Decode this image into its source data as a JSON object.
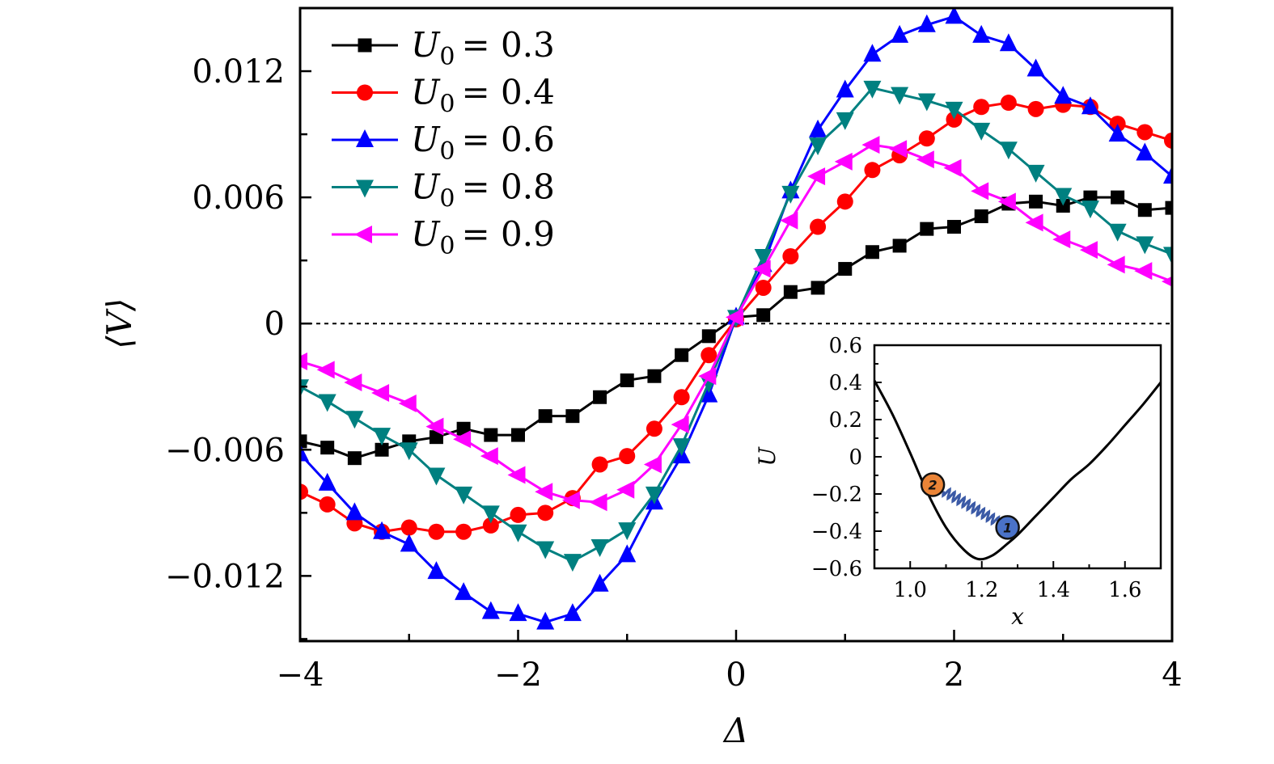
{
  "chart_data": {
    "type": "line",
    "title": "",
    "xlabel": "Δ",
    "ylabel": "⟨V⟩",
    "xlim": [
      -4,
      4
    ],
    "ylim": [
      -0.0151,
      0.015
    ],
    "xticks": [
      -4,
      -2,
      0,
      2,
      4
    ],
    "xtick_labels": [
      "−4",
      "−2",
      "0",
      "2",
      "4"
    ],
    "yticks": [
      -0.012,
      -0.006,
      0,
      0.006,
      0.012
    ],
    "ytick_labels": [
      "−0.012",
      "−0.006",
      "0",
      "0.006",
      "0.012"
    ],
    "grid": false,
    "reference_line": {
      "y": 0,
      "style": "dotted"
    },
    "legend_position": "top-left",
    "x": [
      -4,
      -3.75,
      -3.5,
      -3.25,
      -3,
      -2.75,
      -2.5,
      -2.25,
      -2,
      -1.75,
      -1.5,
      -1.25,
      -1,
      -0.75,
      -0.5,
      -0.25,
      0,
      0.25,
      0.5,
      0.75,
      1,
      1.25,
      1.5,
      1.75,
      2,
      2.25,
      2.5,
      2.75,
      3,
      3.25,
      3.5,
      3.75,
      4
    ],
    "series": [
      {
        "name": "U_0 = 0.3",
        "legend_label": "= 0.3",
        "color": "#000000",
        "marker": "square",
        "values": [
          -0.0056,
          -0.0059,
          -0.0064,
          -0.006,
          -0.0056,
          -0.0054,
          -0.005,
          -0.0053,
          -0.0053,
          -0.0044,
          -0.0044,
          -0.0035,
          -0.0027,
          -0.0025,
          -0.0015,
          -0.0006,
          0.0003,
          0.0004,
          0.0015,
          0.0017,
          0.0026,
          0.0034,
          0.0037,
          0.0045,
          0.0046,
          0.0051,
          0.0057,
          0.0058,
          0.0056,
          0.006,
          0.006,
          0.0054,
          0.0055
        ]
      },
      {
        "name": "U_0 = 0.4",
        "legend_label": "= 0.4",
        "color": "#ff0000",
        "marker": "circle",
        "values": [
          -0.008,
          -0.0086,
          -0.0095,
          -0.0099,
          -0.0097,
          -0.0099,
          -0.0099,
          -0.0096,
          -0.0091,
          -0.009,
          -0.0083,
          -0.0067,
          -0.0063,
          -0.005,
          -0.0035,
          -0.0015,
          0.0002,
          0.0017,
          0.0032,
          0.0046,
          0.0058,
          0.0073,
          0.008,
          0.0088,
          0.0097,
          0.0103,
          0.0105,
          0.0102,
          0.0104,
          0.0103,
          0.0095,
          0.0091,
          0.0087
        ]
      },
      {
        "name": "U_0 = 0.6",
        "legend_label": "= 0.6",
        "color": "#0000ff",
        "marker": "triangle-up",
        "values": [
          -0.0062,
          -0.0076,
          -0.009,
          -0.0099,
          -0.0105,
          -0.0118,
          -0.0128,
          -0.0137,
          -0.0138,
          -0.0142,
          -0.0138,
          -0.0124,
          -0.011,
          -0.0085,
          -0.0063,
          -0.0034,
          0.0003,
          0.0028,
          0.0063,
          0.0092,
          0.0111,
          0.0128,
          0.0137,
          0.0142,
          0.0146,
          0.0137,
          0.0133,
          0.0121,
          0.0108,
          0.0103,
          0.009,
          0.0081,
          0.007
        ]
      },
      {
        "name": "U_0 = 0.8",
        "legend_label": "= 0.8",
        "color": "#008080",
        "marker": "triangle-down",
        "values": [
          -0.003,
          -0.0037,
          -0.0045,
          -0.0053,
          -0.006,
          -0.0072,
          -0.0081,
          -0.009,
          -0.0099,
          -0.0107,
          -0.0113,
          -0.0106,
          -0.0098,
          -0.0081,
          -0.0058,
          -0.0028,
          0.0003,
          0.0032,
          0.0062,
          0.0085,
          0.0097,
          0.0112,
          0.0109,
          0.0106,
          0.0102,
          0.0092,
          0.0083,
          0.0072,
          0.0061,
          0.0055,
          0.0044,
          0.0038,
          0.0033
        ]
      },
      {
        "name": "U_0 = 0.9",
        "legend_label": "= 0.9",
        "color": "#ff00ff",
        "marker": "triangle-left",
        "values": [
          -0.0018,
          -0.0022,
          -0.0028,
          -0.0033,
          -0.0038,
          -0.0049,
          -0.0055,
          -0.0063,
          -0.0072,
          -0.008,
          -0.0084,
          -0.0085,
          -0.0079,
          -0.0067,
          -0.0048,
          -0.0025,
          0.0003,
          0.0026,
          0.0049,
          0.007,
          0.0077,
          0.0085,
          0.0083,
          0.0078,
          0.0074,
          0.0063,
          0.0058,
          0.0048,
          0.004,
          0.0035,
          0.0028,
          0.0025,
          0.002
        ]
      }
    ],
    "inset": {
      "type": "line",
      "xlabel": "x",
      "ylabel": "U",
      "xlim": [
        0.9,
        1.7
      ],
      "ylim": [
        -0.6,
        0.6
      ],
      "xticks": [
        1.0,
        1.2,
        1.4,
        1.6
      ],
      "xtick_labels": [
        "1.0",
        "1.2",
        "1.4",
        "1.6"
      ],
      "yticks": [
        -0.6,
        -0.4,
        -0.2,
        0,
        0.2,
        0.4,
        0.6
      ],
      "ytick_labels": [
        "−0.6",
        "−0.4",
        "−0.2",
        "0",
        "0.2",
        "0.4",
        "0.6"
      ],
      "curve": {
        "color": "#000000",
        "x": [
          0.9,
          0.95,
          1.0,
          1.05,
          1.1,
          1.15,
          1.19,
          1.23,
          1.27,
          1.3,
          1.35,
          1.4,
          1.45,
          1.5,
          1.55,
          1.6,
          1.65,
          1.7
        ],
        "y": [
          0.41,
          0.23,
          0.02,
          -0.2,
          -0.38,
          -0.5,
          -0.55,
          -0.53,
          -0.47,
          -0.42,
          -0.32,
          -0.22,
          -0.12,
          -0.04,
          0.06,
          0.17,
          0.28,
          0.4
        ]
      },
      "particles": [
        {
          "label": "2",
          "x": 1.063,
          "y": -0.15,
          "color": "#ea8437"
        },
        {
          "label": "1",
          "x": 1.272,
          "y": -0.38,
          "color": "#4a72c8"
        }
      ],
      "spring_color": "#3b5aa6"
    }
  }
}
